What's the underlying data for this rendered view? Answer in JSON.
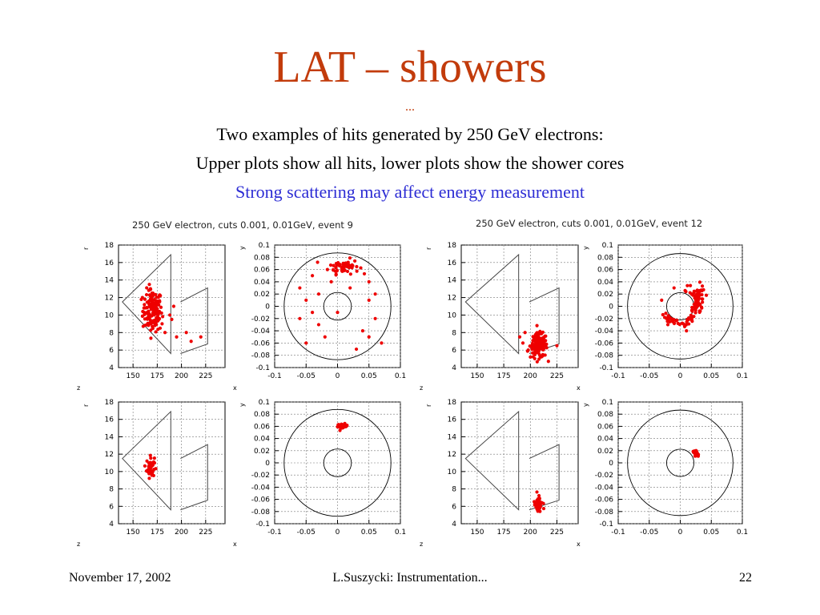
{
  "slide": {
    "title": "LAT – showers",
    "dots": "...",
    "line1": "Two examples of hits generated by 250 GeV electrons:",
    "line2": "Upper plots show all hits, lower plots show the shower cores",
    "line3": "Strong scattering may affect energy measurement"
  },
  "colors": {
    "title": "#c23b0b",
    "highlight": "#2c2cd4",
    "hits": "#ee0000",
    "frame": "#444444"
  },
  "footer": {
    "date": "November 17, 2002",
    "center": "L.Suszycki: Instrumentation...",
    "page": "22"
  },
  "chart_data": [
    {
      "type": "scatter",
      "title": "250 GeV electron,  cuts 0.001, 0.01GeV, event 9",
      "panels": [
        {
          "view": "r-z",
          "row": "upper",
          "xlabel": "z",
          "ylabel": "r",
          "xlim": [
            135,
            245
          ],
          "ylim": [
            4,
            18
          ],
          "xticks": [
            "150",
            "175",
            "200",
            "225"
          ],
          "yticks": [
            "4",
            "6",
            "8",
            "10",
            "12",
            "14",
            "16",
            "18"
          ],
          "cluster": {
            "x": 170,
            "y": 10.5,
            "sx": 5,
            "sy": 1.2,
            "n": 140
          },
          "extra": [
            [
              188,
              10
            ],
            [
              192,
              11
            ],
            [
              180,
              9
            ],
            [
              210,
              7
            ],
            [
              183,
              8
            ],
            [
              190,
              9.5
            ],
            [
              168,
              13
            ],
            [
              178,
              8.5
            ],
            [
              220,
              7.5
            ],
            [
              195,
              7.5
            ],
            [
              205,
              8
            ]
          ]
        },
        {
          "view": "x-y",
          "row": "upper",
          "xlabel": "x",
          "ylabel": "y",
          "xlim": [
            -0.1,
            0.1
          ],
          "ylim": [
            -0.1,
            0.1
          ],
          "xticks": [
            "-0.1",
            "-0.05",
            "0",
            "0.05",
            "0.1"
          ],
          "yticks": [
            "-0.1",
            "-0.08",
            "-0.06",
            "-0.04",
            "-0.02",
            "0",
            "0.02",
            "0.04",
            "0.06",
            "0.08",
            "0.1"
          ],
          "cluster": {
            "x": 0.01,
            "y": 0.065,
            "sx": 0.012,
            "sy": 0.006,
            "n": 60
          },
          "extra": [
            [
              -0.05,
              0.01
            ],
            [
              -0.04,
              -0.01
            ],
            [
              -0.03,
              -0.03
            ],
            [
              -0.06,
              0.03
            ],
            [
              0.05,
              0.01
            ],
            [
              0.06,
              -0.02
            ],
            [
              0.04,
              -0.04
            ],
            [
              -0.02,
              -0.05
            ],
            [
              0.03,
              -0.07
            ],
            [
              0.0,
              -0.01
            ],
            [
              0.05,
              0.04
            ],
            [
              -0.04,
              0.05
            ],
            [
              0.07,
              -0.06
            ],
            [
              -0.06,
              -0.02
            ],
            [
              0.02,
              0.03
            ],
            [
              -0.01,
              0.04
            ],
            [
              0.06,
              0.02
            ],
            [
              -0.05,
              -0.06
            ],
            [
              0.05,
              -0.05
            ],
            [
              -0.03,
              0.02
            ]
          ]
        },
        {
          "view": "r-z",
          "row": "lower",
          "xlabel": "z",
          "ylabel": "r",
          "xlim": [
            135,
            245
          ],
          "ylim": [
            4,
            18
          ],
          "xticks": [
            "150",
            "175",
            "200",
            "225"
          ],
          "yticks": [
            "4",
            "6",
            "8",
            "10",
            "12",
            "14",
            "16",
            "18"
          ],
          "cluster": {
            "x": 168,
            "y": 10.5,
            "sx": 2,
            "sy": 0.6,
            "n": 45
          },
          "extra": []
        },
        {
          "view": "x-y",
          "row": "lower",
          "xlabel": "x",
          "ylabel": "y",
          "xlim": [
            -0.1,
            0.1
          ],
          "ylim": [
            -0.1,
            0.1
          ],
          "xticks": [
            "-0.1",
            "-0.05",
            "0",
            "0.05",
            "0.1"
          ],
          "yticks": [
            "-0.1",
            "-0.08",
            "-0.06",
            "-0.04",
            "-0.02",
            "0",
            "0.02",
            "0.04",
            "0.06",
            "0.08",
            "0.1"
          ],
          "cluster": {
            "x": 0.008,
            "y": 0.06,
            "sx": 0.004,
            "sy": 0.002,
            "n": 35
          },
          "extra": []
        }
      ]
    },
    {
      "type": "scatter",
      "title": "250 GeV electron,  cuts 0.001, 0.01GeV, event 12",
      "panels": [
        {
          "view": "r-z",
          "row": "upper",
          "xlabel": "z",
          "ylabel": "r",
          "xlim": [
            135,
            245
          ],
          "ylim": [
            4,
            18
          ],
          "xticks": [
            "150",
            "175",
            "200",
            "225"
          ],
          "yticks": [
            "4",
            "6",
            "8",
            "10",
            "12",
            "14",
            "16",
            "18"
          ],
          "cluster": {
            "x": 208,
            "y": 6.5,
            "sx": 4,
            "sy": 0.7,
            "n": 140
          },
          "extra": [
            [
              195,
              8
            ],
            [
              190,
              7.5
            ],
            [
              198,
              6
            ],
            [
              225,
              6.5
            ],
            [
              193,
              6.8
            ]
          ]
        },
        {
          "view": "x-y",
          "row": "upper",
          "xlabel": "x",
          "ylabel": "y",
          "xlim": [
            -0.1,
            0.1
          ],
          "ylim": [
            -0.1,
            0.1
          ],
          "xticks": [
            "-0.1",
            "-0.05",
            "0",
            "0.05",
            "0.1"
          ],
          "yticks": [
            "-0.1",
            "-0.08",
            "-0.06",
            "-0.04",
            "-0.02",
            "0",
            "0.02",
            "0.04",
            "0.06",
            "0.08",
            "0.1"
          ],
          "cluster": {
            "x": 0.03,
            "y": 0.01,
            "sx": 0.005,
            "sy": 0.012,
            "n": 50
          },
          "ring": {
            "r": 0.028,
            "n": 55
          },
          "extra": [
            [
              -0.03,
              0.01
            ],
            [
              -0.02,
              -0.03
            ],
            [
              0.01,
              -0.04
            ],
            [
              -0.01,
              0.03
            ]
          ]
        },
        {
          "view": "r-z",
          "row": "lower",
          "xlabel": "z",
          "ylabel": "r",
          "xlim": [
            135,
            245
          ],
          "ylim": [
            4,
            18
          ],
          "xticks": [
            "150",
            "175",
            "200",
            "225"
          ],
          "yticks": [
            "4",
            "6",
            "8",
            "10",
            "12",
            "14",
            "16",
            "18"
          ],
          "cluster": {
            "x": 207,
            "y": 6.3,
            "sx": 2,
            "sy": 0.5,
            "n": 45
          },
          "extra": []
        },
        {
          "view": "x-y",
          "row": "lower",
          "xlabel": "x",
          "ylabel": "y",
          "xlim": [
            -0.1,
            0.1
          ],
          "ylim": [
            -0.1,
            0.1
          ],
          "xticks": [
            "-0.1",
            "-0.05",
            "0",
            "0.05",
            "0.1"
          ],
          "yticks": [
            "-0.1",
            "-0.08",
            "-0.06",
            "-0.04",
            "-0.02",
            "0",
            "0.02",
            "0.04",
            "0.06",
            "0.08",
            "0.1"
          ],
          "cluster": {
            "x": 0.025,
            "y": 0.015,
            "sx": 0.002,
            "sy": 0.002,
            "n": 25
          },
          "extra": []
        }
      ]
    }
  ]
}
